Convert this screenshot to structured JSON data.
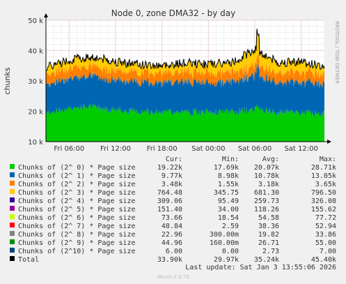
{
  "chart_data": {
    "type": "area",
    "title": "Node 0, zone DMA32 - by day",
    "ylabel": "chunks",
    "side_label": "RRDTOOL / TOBI OETIKER",
    "ylim": [
      10000,
      50000
    ],
    "y_ticks": [
      {
        "value": 10000,
        "label": "10 k"
      },
      {
        "value": 20000,
        "label": "20 k"
      },
      {
        "value": 30000,
        "label": "30 k"
      },
      {
        "value": 40000,
        "label": "40 k"
      },
      {
        "value": 50000,
        "label": "50 k"
      }
    ],
    "x_ticks": [
      {
        "value": 6,
        "label": "Fri 06:00"
      },
      {
        "value": 12,
        "label": "Fri 12:00"
      },
      {
        "value": 18,
        "label": "Fri 18:00"
      },
      {
        "value": 24,
        "label": "Sat 00:00"
      },
      {
        "value": 30,
        "label": "Sat 06:00"
      },
      {
        "value": 36,
        "label": "Sat 12:00"
      }
    ],
    "x_range_hours": [
      3,
      39
    ],
    "grid": true,
    "stack_bands": [
      {
        "name": "Chunks of (2^ 0) * Page size",
        "color": "#00cc00",
        "cur": 19220
      },
      {
        "name": "Chunks of (2^ 1) * Page size",
        "color": "#0066b3",
        "cur": 9770
      },
      {
        "name": "Chunks of (2^ 2) * Page size",
        "color": "#ff8000",
        "cur": 3480
      },
      {
        "name": "Chunks of (2^ 3) * Page size",
        "color": "#ffcc00",
        "cur": 764.48
      },
      {
        "name": "Chunks of (2^ 4) * Page size",
        "color": "#330099",
        "cur": 309.06
      }
    ],
    "series_approx": [
      {
        "hour": 3,
        "total": 34000,
        "c0": 19500,
        "c1": 9600
      },
      {
        "hour": 6,
        "total": 36500,
        "c0": 21000,
        "c1": 10000
      },
      {
        "hour": 9,
        "total": 37500,
        "c0": 21500,
        "c1": 10200
      },
      {
        "hour": 12,
        "total": 36000,
        "c0": 20500,
        "c1": 10000
      },
      {
        "hour": 15,
        "total": 35000,
        "c0": 19800,
        "c1": 9900
      },
      {
        "hour": 18,
        "total": 34500,
        "c0": 19500,
        "c1": 9800
      },
      {
        "hour": 21,
        "total": 35500,
        "c0": 19800,
        "c1": 10000
      },
      {
        "hour": 24,
        "total": 35000,
        "c0": 19500,
        "c1": 9900
      },
      {
        "hour": 27,
        "total": 35500,
        "c0": 19800,
        "c1": 10000
      },
      {
        "hour": 30,
        "total": 40000,
        "c0": 20500,
        "c1": 11500
      },
      {
        "hour": 33,
        "total": 35500,
        "c0": 19500,
        "c1": 10000
      },
      {
        "hour": 36,
        "total": 36000,
        "c0": 19500,
        "c1": 10200
      },
      {
        "hour": 39,
        "total": 34000,
        "c0": 19200,
        "c1": 9800
      }
    ]
  },
  "legend": {
    "headers": {
      "cur": "Cur:",
      "min": "Min:",
      "avg": "Avg:",
      "max": "Max:"
    },
    "rows": [
      {
        "label": "Chunks of (2^ 0) * Page size",
        "color": "#00cc00",
        "cur": "19.22k",
        "min": "17.69k",
        "avg": "20.07k",
        "max": "28.71k"
      },
      {
        "label": "Chunks of (2^ 1) * Page size",
        "color": "#0066b3",
        "cur": "9.77k",
        "min": "8.98k",
        "avg": "10.78k",
        "max": "13.05k"
      },
      {
        "label": "Chunks of (2^ 2) * Page size",
        "color": "#ff8000",
        "cur": "3.48k",
        "min": "1.55k",
        "avg": "3.18k",
        "max": "3.65k"
      },
      {
        "label": "Chunks of (2^ 3) * Page size",
        "color": "#ffcc00",
        "cur": "764.48",
        "min": "345.75",
        "avg": "681.30",
        "max": "796.50"
      },
      {
        "label": "Chunks of (2^ 4) * Page size",
        "color": "#330099",
        "cur": "309.06",
        "min": "95.49",
        "avg": "259.73",
        "max": "326.08"
      },
      {
        "label": "Chunks of (2^ 5) * Page size",
        "color": "#990099",
        "cur": "151.40",
        "min": "34.00",
        "avg": "118.26",
        "max": "155.62"
      },
      {
        "label": "Chunks of (2^ 6) * Page size",
        "color": "#ccff00",
        "cur": "73.66",
        "min": "18.54",
        "avg": "54.58",
        "max": "77.72"
      },
      {
        "label": "Chunks of (2^ 7) * Page size",
        "color": "#ff0000",
        "cur": "48.84",
        "min": "2.59",
        "avg": "38.36",
        "max": "52.94"
      },
      {
        "label": "Chunks of (2^ 8) * Page size",
        "color": "#808080",
        "cur": "22.96",
        "min": "300.00m",
        "avg": "19.82",
        "max": "33.86"
      },
      {
        "label": "Chunks of (2^ 9) * Page size",
        "color": "#008f00",
        "cur": "44.96",
        "min": "160.00m",
        "avg": "26.71",
        "max": "55.00"
      },
      {
        "label": "Chunks of (2^10) * Page size",
        "color": "#00487d",
        "cur": "6.00",
        "min": "0.00",
        "avg": "2.73",
        "max": "7.00"
      },
      {
        "label": "Total",
        "color": "#000000",
        "cur": "33.90k",
        "min": "29.97k",
        "avg": "35.24k",
        "max": "45.40k"
      }
    ]
  },
  "last_update": "Last update: Sat Jan  3 13:55:06 2026",
  "footer": "Munin 2.0.73"
}
